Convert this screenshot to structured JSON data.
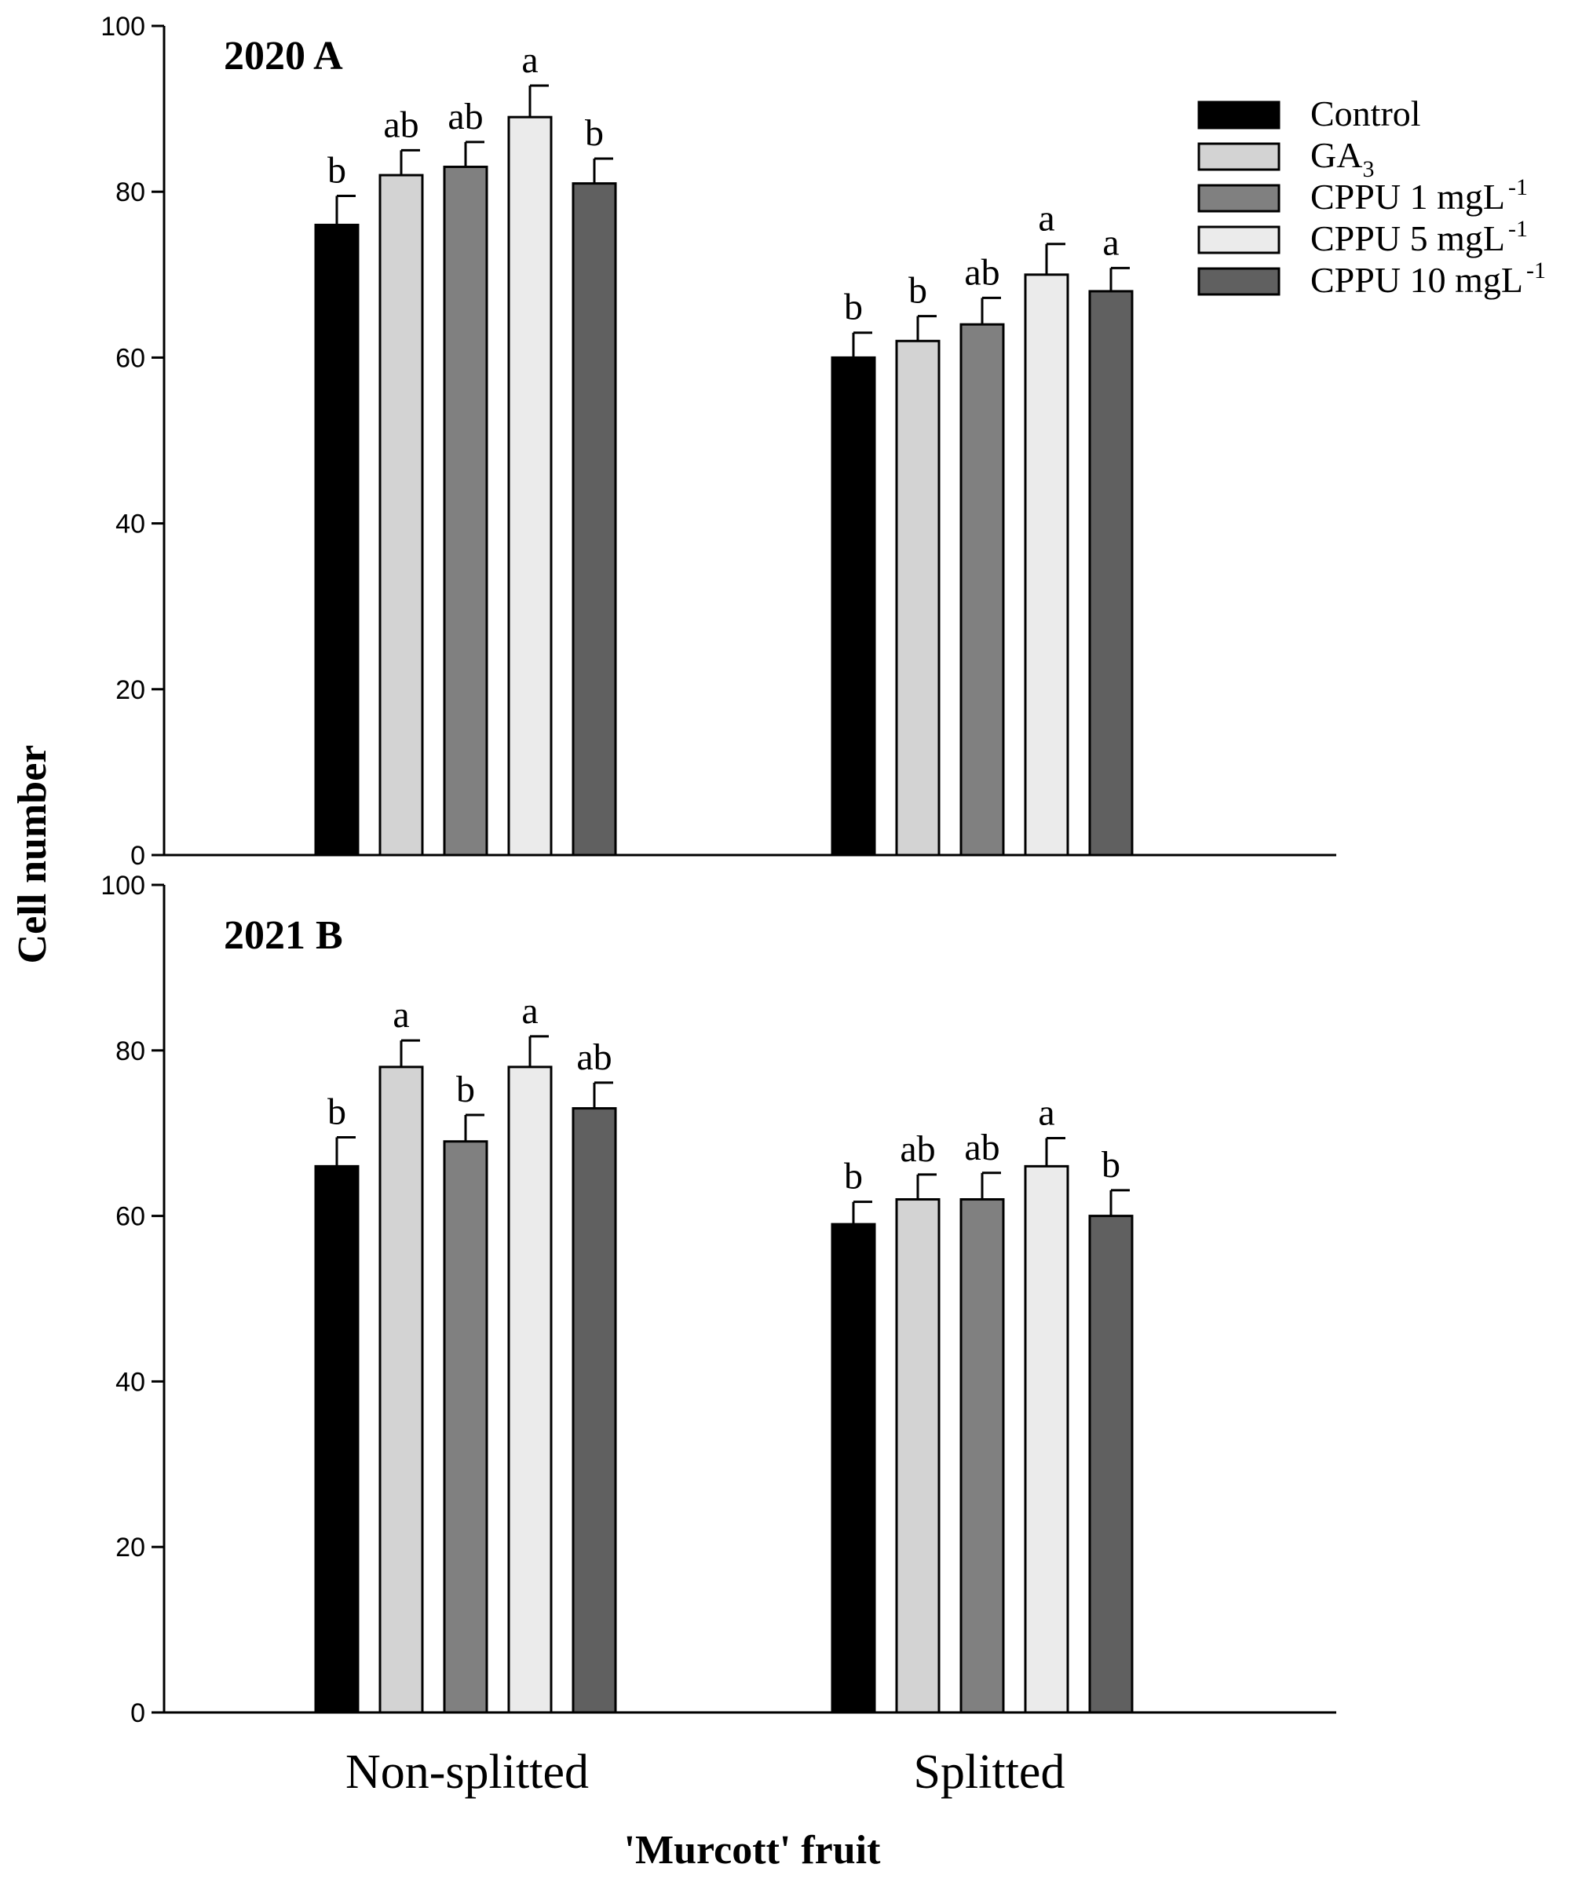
{
  "chart_data": [
    {
      "type": "bar",
      "title": "2020 A",
      "categories": [
        "Non-splitted",
        "Splitted"
      ],
      "ylabel": "Cell number",
      "xlabel": "'Murcott' fruit",
      "ylim": [
        0,
        100
      ],
      "yticks": [
        0,
        20,
        40,
        60,
        80,
        100
      ],
      "series": [
        {
          "name": "Control",
          "color": "#000000",
          "values": [
            76,
            60
          ],
          "errors": [
            3.5,
            3
          ],
          "labels": [
            "b",
            "b"
          ]
        },
        {
          "name": "GA3",
          "color": "#d3d3d3",
          "values": [
            82,
            62
          ],
          "errors": [
            3,
            3
          ],
          "labels": [
            "ab",
            "b"
          ]
        },
        {
          "name": "CPPU 1 mgL-1",
          "color": "#808080",
          "values": [
            83,
            64
          ],
          "errors": [
            3,
            3.2
          ],
          "labels": [
            "ab",
            "ab"
          ]
        },
        {
          "name": "CPPU 5 mgL-1",
          "color": "#ebebeb",
          "values": [
            89,
            70
          ],
          "errors": [
            3.8,
            3.7
          ],
          "labels": [
            "a",
            "a"
          ]
        },
        {
          "name": "CPPU 10 mgL-1",
          "color": "#606060",
          "values": [
            81,
            68
          ],
          "errors": [
            3,
            2.8
          ],
          "labels": [
            "b",
            "a"
          ]
        }
      ]
    },
    {
      "type": "bar",
      "title": "2021 B",
      "categories": [
        "Non-splitted",
        "Splitted"
      ],
      "ylabel": "Cell number",
      "xlabel": "'Murcott' fruit",
      "ylim": [
        0,
        100
      ],
      "yticks": [
        0,
        20,
        40,
        60,
        80,
        100
      ],
      "series": [
        {
          "name": "Control",
          "color": "#000000",
          "values": [
            66,
            59
          ],
          "errors": [
            3.5,
            2.7
          ],
          "labels": [
            "b",
            "b"
          ]
        },
        {
          "name": "GA3",
          "color": "#d3d3d3",
          "values": [
            78,
            62
          ],
          "errors": [
            3.2,
            3
          ],
          "labels": [
            "a",
            "ab"
          ]
        },
        {
          "name": "CPPU 1 mgL-1",
          "color": "#808080",
          "values": [
            69,
            62
          ],
          "errors": [
            3.2,
            3.2
          ],
          "labels": [
            "b",
            "ab"
          ]
        },
        {
          "name": "CPPU 5 mgL-1",
          "color": "#ebebeb",
          "values": [
            78,
            66
          ],
          "errors": [
            3.7,
            3.4
          ],
          "labels": [
            "a",
            "a"
          ]
        },
        {
          "name": "CPPU 10 mgL-1",
          "color": "#606060",
          "values": [
            73,
            60
          ],
          "errors": [
            3.1,
            3.1
          ],
          "labels": [
            "ab",
            "b"
          ]
        }
      ]
    }
  ],
  "legend": {
    "position": "top-right",
    "items": [
      {
        "text": "Control",
        "sub": "",
        "sup": "",
        "color": "#000000"
      },
      {
        "text": "GA",
        "sub": "3",
        "sup": "",
        "color": "#d3d3d3"
      },
      {
        "text": "CPPU 1 mgL",
        "sub": "",
        "sup": "-1",
        "color": "#808080"
      },
      {
        "text": "CPPU 5 mgL",
        "sub": "",
        "sup": "-1",
        "color": "#ebebeb"
      },
      {
        "text": "CPPU 10 mgL",
        "sub": "",
        "sup": "-1",
        "color": "#606060"
      }
    ]
  }
}
